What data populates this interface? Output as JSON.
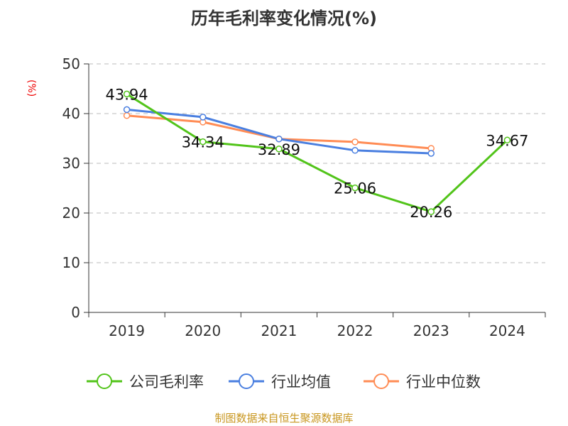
{
  "chart_data": {
    "type": "line",
    "title": "历年毛利率变化情况(%)",
    "ylabel": "(%)",
    "xlabel": "",
    "categories": [
      "2019",
      "2020",
      "2021",
      "2022",
      "2023",
      "2024"
    ],
    "ylim": [
      0,
      50
    ],
    "yticks": [
      0,
      10,
      20,
      30,
      40,
      50
    ],
    "grid": true,
    "legend_position": "bottom",
    "series": [
      {
        "name": "公司毛利率",
        "color": "#52c41a",
        "values": [
          43.94,
          34.34,
          32.89,
          25.06,
          20.26,
          34.67
        ],
        "labels": [
          "43.94",
          "34.34",
          "32.89",
          "25.06",
          "20.26",
          "34.67"
        ]
      },
      {
        "name": "行业均值",
        "color": "#4a7fe0",
        "values": [
          40.8,
          39.3,
          34.9,
          32.6,
          32.0,
          null
        ]
      },
      {
        "name": "行业中位数",
        "color": "#ff8c55",
        "values": [
          39.6,
          38.3,
          34.9,
          34.3,
          33.0,
          null
        ]
      }
    ]
  },
  "source": "制图数据来自恒生聚源数据库"
}
